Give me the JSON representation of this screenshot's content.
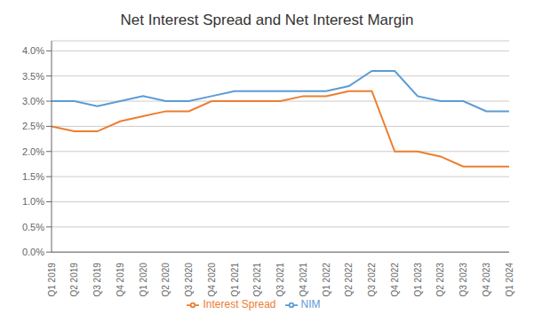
{
  "chart_data": {
    "type": "line",
    "title": "Net Interest Spread and Net Interest Margin",
    "categories": [
      "Q1 2019",
      "Q2 2019",
      "Q3 2019",
      "Q4 2019",
      "Q1 2020",
      "Q2 2020",
      "Q3 2020",
      "Q4 2020",
      "Q1 2021",
      "Q2 2021",
      "Q3 2021",
      "Q4 2021",
      "Q1 2022",
      "Q2 2022",
      "Q3 2022",
      "Q4 2022",
      "Q1 2023",
      "Q2 2023",
      "Q3 2023",
      "Q4 2023",
      "Q1 2024"
    ],
    "series": [
      {
        "name": "NIM",
        "color": "#5B9BD5",
        "values": [
          0.03,
          0.03,
          0.029,
          0.03,
          0.031,
          0.03,
          0.03,
          0.031,
          0.032,
          0.032,
          0.032,
          0.032,
          0.032,
          0.033,
          0.036,
          0.036,
          0.031,
          0.03,
          0.03,
          0.028,
          0.028
        ]
      },
      {
        "name": "Interest Spread",
        "color": "#ED7D31",
        "values": [
          0.025,
          0.024,
          0.024,
          0.026,
          0.027,
          0.028,
          0.028,
          0.03,
          0.03,
          0.03,
          0.03,
          0.031,
          0.031,
          0.032,
          0.032,
          0.02,
          0.02,
          0.019,
          0.017,
          0.017,
          0.017
        ]
      }
    ],
    "ylim": [
      0.0,
      0.042
    ],
    "yticks": [
      {
        "value": 0.0,
        "label": "0.0%"
      },
      {
        "value": 0.005,
        "label": "0.5%"
      },
      {
        "value": 0.01,
        "label": "1.0%"
      },
      {
        "value": 0.015,
        "label": "1.5%"
      },
      {
        "value": 0.02,
        "label": "2.0%"
      },
      {
        "value": 0.025,
        "label": "2.5%"
      },
      {
        "value": 0.03,
        "label": "3.0%"
      },
      {
        "value": 0.035,
        "label": "3.5%"
      },
      {
        "value": 0.04,
        "label": "4.0%"
      }
    ],
    "grid": true,
    "legend": "bottom"
  }
}
